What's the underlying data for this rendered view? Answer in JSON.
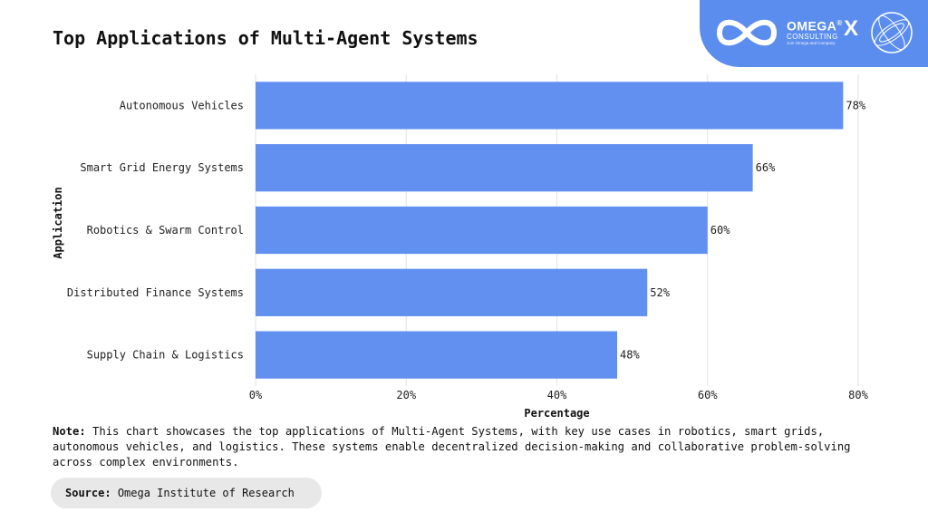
{
  "title": "Top Applications of Multi-Agent Systems",
  "brand": {
    "name": "OMEGA",
    "registered": "®",
    "sub": "CONSULTING",
    "tagline": "Join Omega and Company",
    "separator": "X",
    "logo_icon": "infinity-icon",
    "partner_icon": "sphere-icon"
  },
  "chart_data": {
    "type": "bar",
    "orientation": "horizontal",
    "categories": [
      "Autonomous Vehicles",
      "Smart Grid Energy Systems",
      "Robotics & Swarm Control",
      "Distributed Finance Systems",
      "Supply Chain & Logistics"
    ],
    "values": [
      78,
      66,
      60,
      52,
      48
    ],
    "value_labels": [
      "78%",
      "66%",
      "60%",
      "52%",
      "48%"
    ],
    "xlabel": "Percentage",
    "ylabel": "Application",
    "xlim": [
      0,
      80
    ],
    "xticks": [
      0,
      20,
      40,
      60,
      80
    ],
    "xtick_labels": [
      "0%",
      "20%",
      "40%",
      "60%",
      "80%"
    ],
    "grid": "vertical",
    "bar_color": "#6290f0",
    "grid_color": "#e3e3e3"
  },
  "note": {
    "label": "Note:",
    "text": "This chart showcases the top applications of Multi-Agent Systems, with key use cases in robotics, smart grids, autonomous vehicles, and logistics. These systems enable decentralized decision-making and collaborative problem-solving across complex environments."
  },
  "source": {
    "label": "Source:",
    "text": "Omega Institute of Research"
  },
  "colors": {
    "accent": "#5b8def",
    "bar": "#6290f0",
    "source_bg": "#e8e8e8"
  }
}
